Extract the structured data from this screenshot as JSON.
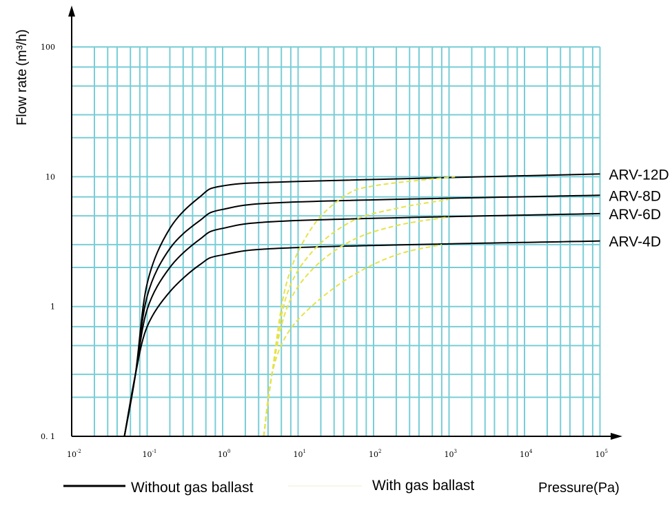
{
  "chart_data": {
    "type": "line",
    "scale": {
      "x": "log",
      "y": "log"
    },
    "xlim": [
      0.01,
      100000
    ],
    "ylim": [
      0.1,
      100
    ],
    "xlabel": "Pressure(Pa)",
    "ylabel_main": "Flow rate",
    "ylabel_unit": "(m³/h)",
    "x_ticks": [
      {
        "value": 0.01,
        "base": "10",
        "exp": "-2"
      },
      {
        "value": 0.1,
        "base": "10",
        "exp": "-1"
      },
      {
        "value": 1,
        "base": "10",
        "exp": "0"
      },
      {
        "value": 10,
        "base": "10",
        "exp": "1"
      },
      {
        "value": 100,
        "base": "10",
        "exp": "2"
      },
      {
        "value": 1000,
        "base": "10",
        "exp": "3"
      },
      {
        "value": 10000,
        "base": "10",
        "exp": "4"
      },
      {
        "value": 100000,
        "base": "10",
        "exp": "5"
      }
    ],
    "y_ticks": [
      {
        "value": 0.1,
        "label": "0. 1"
      },
      {
        "value": 1,
        "label": "1"
      },
      {
        "value": 10,
        "label": "10"
      },
      {
        "value": 100,
        "label": "100"
      }
    ],
    "grid": true,
    "colors": {
      "grid": "#78cdd7",
      "axis": "#000000",
      "without_ballast": "#000000",
      "with_ballast": "#e6e24a"
    },
    "series": [
      {
        "name": "ARV-12D",
        "mode": "without",
        "values": [
          [
            0.05,
            0.1
          ],
          [
            0.07,
            0.3
          ],
          [
            0.1,
            1.5
          ],
          [
            0.2,
            4.0
          ],
          [
            0.5,
            7.0
          ],
          [
            1,
            8.5
          ],
          [
            10,
            9.2
          ],
          [
            100000,
            10.5
          ]
        ]
      },
      {
        "name": "ARV-8D",
        "mode": "without",
        "values": [
          [
            0.05,
            0.1
          ],
          [
            0.07,
            0.3
          ],
          [
            0.1,
            1.2
          ],
          [
            0.2,
            2.8
          ],
          [
            0.5,
            4.6
          ],
          [
            1,
            5.6
          ],
          [
            10,
            6.4
          ],
          [
            100000,
            7.2
          ]
        ]
      },
      {
        "name": "ARV-6D",
        "mode": "without",
        "values": [
          [
            0.05,
            0.1
          ],
          [
            0.07,
            0.3
          ],
          [
            0.1,
            0.95
          ],
          [
            0.2,
            2.0
          ],
          [
            0.5,
            3.3
          ],
          [
            1,
            4.0
          ],
          [
            10,
            4.6
          ],
          [
            100000,
            5.2
          ]
        ]
      },
      {
        "name": "ARV-4D",
        "mode": "without",
        "values": [
          [
            0.05,
            0.1
          ],
          [
            0.07,
            0.3
          ],
          [
            0.1,
            0.7
          ],
          [
            0.2,
            1.3
          ],
          [
            0.5,
            2.1
          ],
          [
            1,
            2.5
          ],
          [
            10,
            2.85
          ],
          [
            100000,
            3.2
          ]
        ]
      },
      {
        "name": "ARV-12D",
        "mode": "with",
        "values": [
          [
            3.5,
            0.1
          ],
          [
            4.5,
            0.3
          ],
          [
            7,
            1.5
          ],
          [
            15,
            4.0
          ],
          [
            40,
            7.0
          ],
          [
            100,
            8.5
          ],
          [
            1200,
            10.0
          ]
        ]
      },
      {
        "name": "ARV-8D",
        "mode": "with",
        "values": [
          [
            3.5,
            0.1
          ],
          [
            4.5,
            0.3
          ],
          [
            7,
            1.2
          ],
          [
            15,
            2.6
          ],
          [
            50,
            4.5
          ],
          [
            200,
            5.7
          ],
          [
            1000,
            6.7
          ]
        ]
      },
      {
        "name": "ARV-6D",
        "mode": "with",
        "values": [
          [
            3.5,
            0.1
          ],
          [
            4.5,
            0.3
          ],
          [
            7,
            0.95
          ],
          [
            15,
            1.9
          ],
          [
            50,
            3.2
          ],
          [
            200,
            4.2
          ],
          [
            1000,
            4.9
          ]
        ]
      },
      {
        "name": "ARV-4D",
        "mode": "with",
        "values": [
          [
            3.5,
            0.1
          ],
          [
            4.5,
            0.3
          ],
          [
            7,
            0.6
          ],
          [
            15,
            1.0
          ],
          [
            50,
            1.7
          ],
          [
            200,
            2.5
          ],
          [
            800,
            3.0
          ]
        ]
      }
    ],
    "legend": {
      "without": "Without gas ballast",
      "with": "With gas ballast"
    }
  }
}
